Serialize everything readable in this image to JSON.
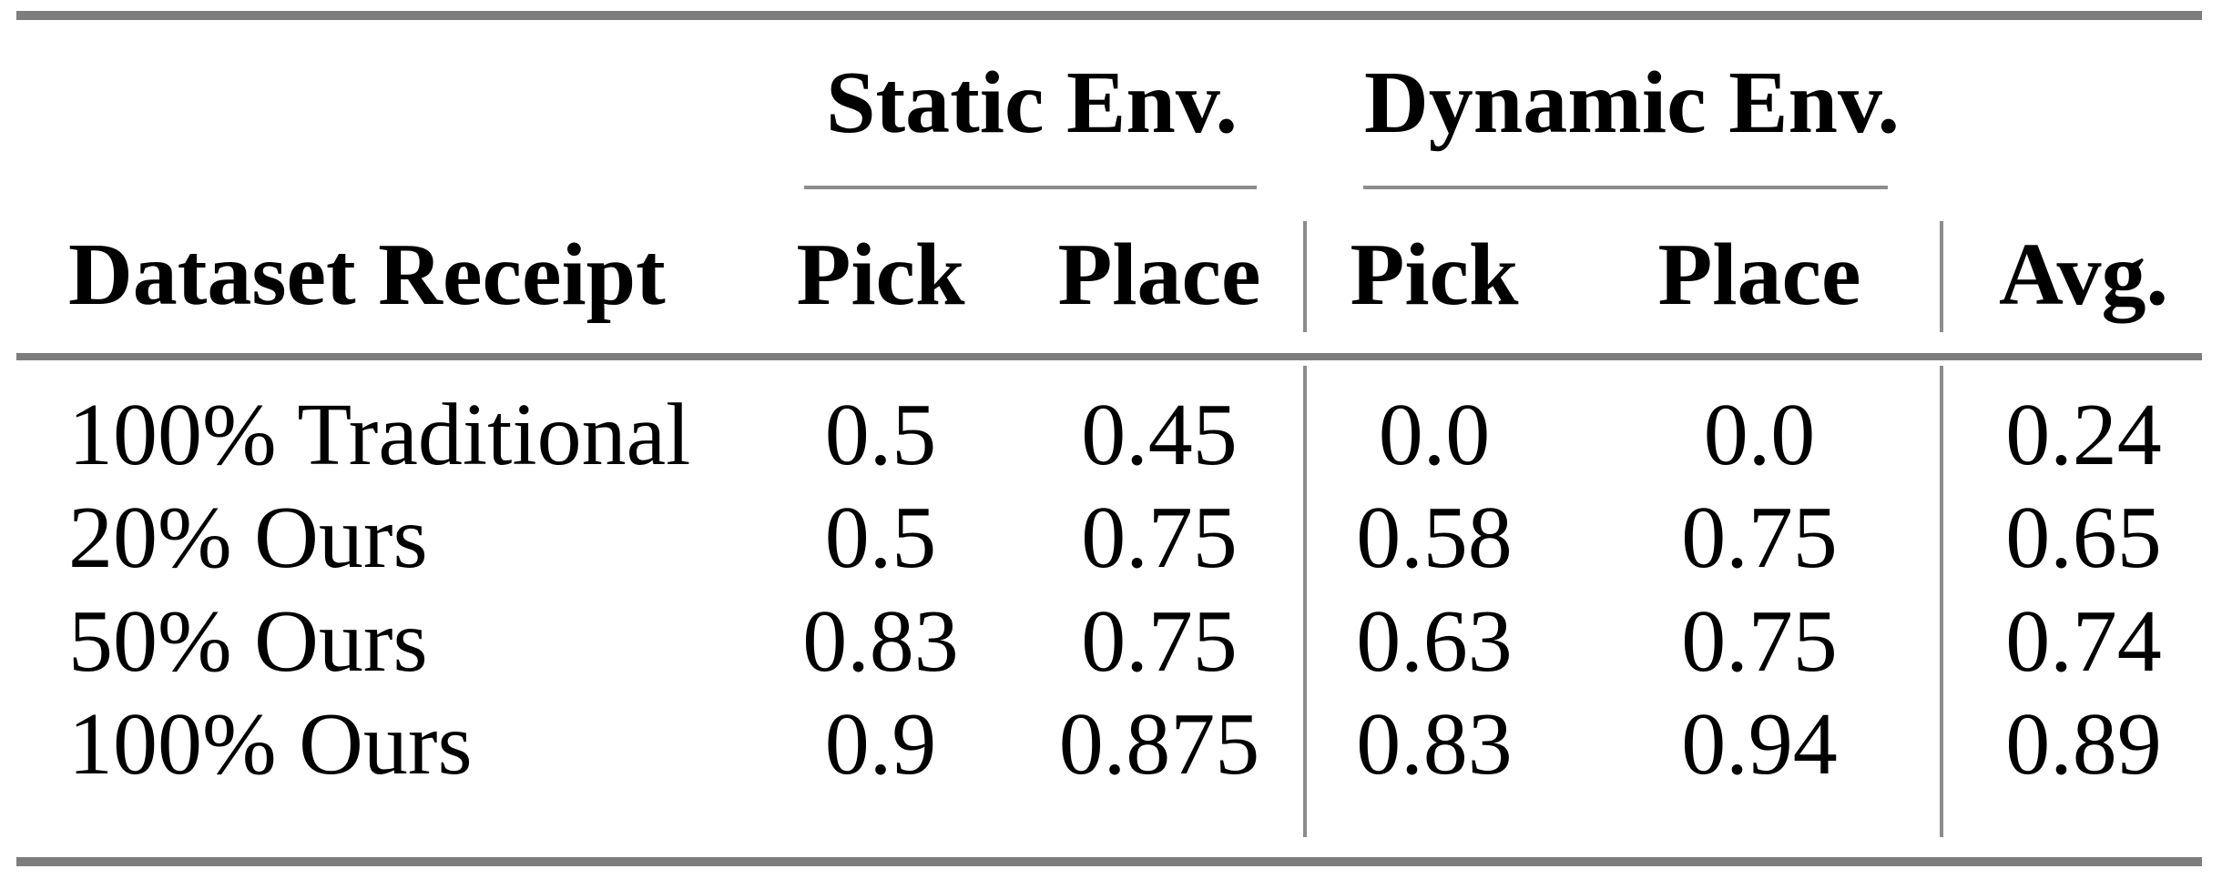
{
  "colors": {
    "rule-heavy": "#7d7d7d",
    "rule-light": "#8c8c8c",
    "text": "#000000",
    "background": "#ffffff"
  },
  "table": {
    "groups": {
      "static": "Static Env.",
      "dynamic": "Dynamic Env."
    },
    "headers": {
      "row_label": "Dataset Receipt",
      "static_pick": "Pick",
      "static_place": "Place",
      "dynamic_pick": "Pick",
      "dynamic_place": "Place",
      "avg": "Avg."
    },
    "rows": [
      {
        "label": "100% Traditional",
        "static_pick": "0.5",
        "static_place": "0.45",
        "dynamic_pick": "0.0",
        "dynamic_place": "0.0",
        "avg": "0.24"
      },
      {
        "label": "20% Ours",
        "static_pick": "0.5",
        "static_place": "0.75",
        "dynamic_pick": "0.58",
        "dynamic_place": "0.75",
        "avg": "0.65"
      },
      {
        "label": "50% Ours",
        "static_pick": "0.83",
        "static_place": "0.75",
        "dynamic_pick": "0.63",
        "dynamic_place": "0.75",
        "avg": "0.74"
      },
      {
        "label": "100% Ours",
        "static_pick": "0.9",
        "static_place": "0.875",
        "dynamic_pick": "0.83",
        "dynamic_place": "0.94",
        "avg": "0.89"
      }
    ]
  }
}
